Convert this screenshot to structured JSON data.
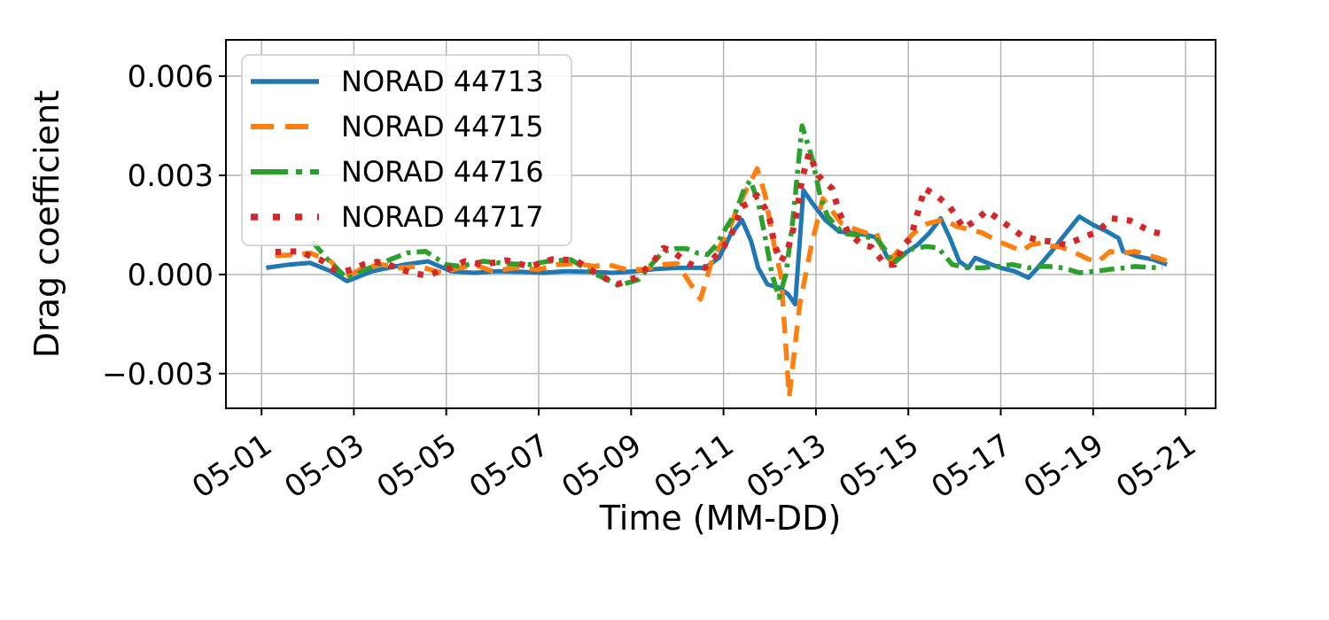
{
  "figure": {
    "background": "#ffffff",
    "grid_color": "#b0b0b0",
    "spine_color": "#000000",
    "legend_bg": "rgba(255,255,255,0.85)",
    "legend_border": "#cccccc"
  },
  "chart_data": {
    "type": "line",
    "title": "",
    "xlabel": "Time (MM-DD)",
    "ylabel": "Drag coefficient",
    "x_tick_days": [
      1,
      3,
      5,
      7,
      9,
      11,
      13,
      15,
      17,
      19,
      21
    ],
    "x_tick_labels": [
      "05-01",
      "05-03",
      "05-05",
      "05-07",
      "05-09",
      "05-11",
      "05-13",
      "05-15",
      "05-17",
      "05-19",
      "05-21"
    ],
    "y_ticks": [
      -0.003,
      0.0,
      0.003,
      0.006
    ],
    "y_tick_labels": [
      "−0.003",
      "0.000",
      "0.003",
      "0.006"
    ],
    "xlim_days": [
      0.23,
      21.65
    ],
    "ylim": [
      -0.00405,
      0.0071
    ],
    "grid": true,
    "legend_position": "upper left",
    "series": [
      {
        "name": "NORAD 44713",
        "color": "#1f77b4",
        "linestyle": "solid",
        "points": [
          [
            1.1,
            0.0002
          ],
          [
            1.6,
            0.0003
          ],
          [
            2.05,
            0.00035
          ],
          [
            2.5,
            0.0001
          ],
          [
            2.85,
            -0.0002
          ],
          [
            3.4,
            0.0001
          ],
          [
            4.1,
            0.0003
          ],
          [
            4.6,
            0.0004
          ],
          [
            5.1,
            0.0001
          ],
          [
            5.6,
            5e-05
          ],
          [
            6.1,
            0.0001
          ],
          [
            6.6,
            8e-05
          ],
          [
            7.1,
            5e-05
          ],
          [
            7.6,
            0.0001
          ],
          [
            8.1,
            8e-05
          ],
          [
            8.6,
            5e-05
          ],
          [
            9.1,
            0.0001
          ],
          [
            9.5,
            0.00016
          ],
          [
            10.0,
            0.0002
          ],
          [
            10.6,
            0.0002
          ],
          [
            10.9,
            0.0005
          ],
          [
            11.15,
            0.0012
          ],
          [
            11.4,
            0.00165
          ],
          [
            11.6,
            0.001
          ],
          [
            11.75,
            0.0002
          ],
          [
            11.95,
            -0.0003
          ],
          [
            12.2,
            -0.0004
          ],
          [
            12.4,
            -0.0006
          ],
          [
            12.55,
            -0.0009
          ],
          [
            12.73,
            0.00255
          ],
          [
            12.9,
            0.0022
          ],
          [
            13.2,
            0.00165
          ],
          [
            13.5,
            0.0013
          ],
          [
            13.8,
            0.00125
          ],
          [
            14.1,
            0.0012
          ],
          [
            14.35,
            0.0011
          ],
          [
            14.55,
            0.0005
          ],
          [
            14.7,
            0.00043
          ],
          [
            15.2,
            0.0009
          ],
          [
            15.45,
            0.00125
          ],
          [
            15.7,
            0.0017
          ],
          [
            15.9,
            0.0011
          ],
          [
            16.1,
            0.0004
          ],
          [
            16.3,
            0.0002
          ],
          [
            16.45,
            0.0005
          ],
          [
            16.8,
            0.0003
          ],
          [
            17.0,
            0.0002
          ],
          [
            17.3,
            0.0001
          ],
          [
            17.6,
            -0.0001
          ],
          [
            17.8,
            0.0002
          ],
          [
            18.1,
            0.0007
          ],
          [
            18.4,
            0.00123
          ],
          [
            18.7,
            0.00175
          ],
          [
            19.0,
            0.0015
          ],
          [
            19.3,
            0.0013
          ],
          [
            19.55,
            0.0011
          ],
          [
            19.65,
            0.0007
          ],
          [
            19.95,
            0.00055
          ],
          [
            20.3,
            0.00045
          ],
          [
            20.6,
            0.0003
          ]
        ]
      },
      {
        "name": "NORAD 44715",
        "color": "#ff7f0e",
        "linestyle": "dashed",
        "points": [
          [
            1.3,
            0.00057
          ],
          [
            1.8,
            0.0006
          ],
          [
            2.05,
            0.00065
          ],
          [
            2.5,
            0.0004
          ],
          [
            2.8,
            -0.0001
          ],
          [
            3.2,
            0.0002
          ],
          [
            3.6,
            0.0003
          ],
          [
            4.0,
            0.0002
          ],
          [
            4.4,
            0.00025
          ],
          [
            4.9,
            5e-05
          ],
          [
            5.3,
            0.0002
          ],
          [
            5.6,
            0.0003
          ],
          [
            6.0,
            0.0001
          ],
          [
            6.5,
            0.0002
          ],
          [
            7.0,
            0.00015
          ],
          [
            7.4,
            0.0003
          ],
          [
            7.8,
            0.00033
          ],
          [
            8.2,
            0.00025
          ],
          [
            8.5,
            0.0003
          ],
          [
            8.9,
            0.00015
          ],
          [
            9.3,
            0.00015
          ],
          [
            9.65,
            0.0003
          ],
          [
            10.0,
            0.00033
          ],
          [
            10.2,
            -0.0001
          ],
          [
            10.5,
            -0.00075
          ],
          [
            10.75,
            0.00043
          ],
          [
            11.1,
            0.0013
          ],
          [
            11.3,
            0.002
          ],
          [
            11.5,
            0.00257
          ],
          [
            11.73,
            0.0032
          ],
          [
            11.9,
            0.0024
          ],
          [
            12.1,
            0.00086
          ],
          [
            12.25,
            -0.0001
          ],
          [
            12.42,
            -0.0037
          ],
          [
            12.65,
            -0.0009
          ],
          [
            12.9,
            0.00087
          ],
          [
            13.15,
            0.0023
          ],
          [
            13.55,
            0.00155
          ],
          [
            13.8,
            0.0014
          ],
          [
            14.1,
            0.00125
          ],
          [
            14.3,
            0.0013
          ],
          [
            14.45,
            0.00072
          ],
          [
            14.6,
            0.00043
          ],
          [
            14.85,
            0.00083
          ],
          [
            15.1,
            0.00123
          ],
          [
            15.4,
            0.00153
          ],
          [
            15.77,
            0.00167
          ],
          [
            16.05,
            0.00145
          ],
          [
            16.3,
            0.00137
          ],
          [
            16.6,
            0.00126
          ],
          [
            16.95,
            0.001
          ],
          [
            17.25,
            0.00083
          ],
          [
            17.45,
            0.0007
          ],
          [
            17.65,
            0.0009
          ],
          [
            17.9,
            0.00096
          ],
          [
            18.1,
            0.00086
          ],
          [
            18.3,
            0.00083
          ],
          [
            18.55,
            0.0007
          ],
          [
            18.9,
            0.00046
          ],
          [
            19.1,
            0.00038
          ],
          [
            19.37,
            0.0007
          ],
          [
            19.64,
            0.00064
          ],
          [
            19.9,
            0.0007
          ],
          [
            20.14,
            0.0006
          ],
          [
            20.4,
            0.0005
          ],
          [
            20.6,
            0.0004
          ]
        ]
      },
      {
        "name": "NORAD 44716",
        "color": "#2ca02c",
        "linestyle": "dashdot",
        "points": [
          [
            2.1,
            0.001
          ],
          [
            2.4,
            0.0005
          ],
          [
            2.85,
            -0.00012
          ],
          [
            3.4,
            0.00024
          ],
          [
            4.15,
            0.00065
          ],
          [
            4.55,
            0.0007
          ],
          [
            5.0,
            0.0003
          ],
          [
            5.3,
            0.00025
          ],
          [
            5.8,
            0.0004
          ],
          [
            6.3,
            0.00033
          ],
          [
            6.8,
            0.0003
          ],
          [
            7.2,
            0.0004
          ],
          [
            7.7,
            0.00045
          ],
          [
            8.1,
            0.0001
          ],
          [
            8.4,
            -0.0001
          ],
          [
            8.75,
            -0.00033
          ],
          [
            9.15,
            -0.00016
          ],
          [
            9.4,
            0.00024
          ],
          [
            9.7,
            0.0007
          ],
          [
            9.95,
            0.00078
          ],
          [
            10.2,
            0.00078
          ],
          [
            10.45,
            0.00064
          ],
          [
            10.65,
            0.0006
          ],
          [
            10.85,
            0.0009
          ],
          [
            11.05,
            0.0014
          ],
          [
            11.25,
            0.00185
          ],
          [
            11.45,
            0.0026
          ],
          [
            11.58,
            0.00285
          ],
          [
            11.75,
            0.0022
          ],
          [
            11.9,
            0.00113
          ],
          [
            12.05,
            0.0
          ],
          [
            12.2,
            -0.0007
          ],
          [
            12.35,
            0.0
          ],
          [
            12.5,
            0.00166
          ],
          [
            12.7,
            0.0045
          ],
          [
            12.92,
            0.0035
          ],
          [
            13.1,
            0.00233
          ],
          [
            13.25,
            0.00177
          ],
          [
            13.45,
            0.00145
          ],
          [
            13.6,
            0.00124
          ],
          [
            13.85,
            0.0012
          ],
          [
            14.1,
            0.00113
          ],
          [
            14.3,
            0.0011
          ],
          [
            14.5,
            0.00075
          ],
          [
            14.67,
            0.00033
          ],
          [
            14.9,
            0.0006
          ],
          [
            15.1,
            0.00078
          ],
          [
            15.4,
            0.00085
          ],
          [
            15.65,
            0.0008
          ],
          [
            15.95,
            0.0003
          ],
          [
            16.3,
            0.0002
          ],
          [
            16.6,
            0.0002
          ],
          [
            16.9,
            0.00024
          ],
          [
            17.25,
            0.0003
          ],
          [
            17.6,
            0.0002
          ],
          [
            17.8,
            0.00024
          ],
          [
            18.05,
            0.00024
          ],
          [
            18.35,
            0.0002
          ],
          [
            18.7,
            5e-05
          ],
          [
            19.07,
            0.0001
          ],
          [
            19.4,
            0.00016
          ],
          [
            19.7,
            0.0002
          ],
          [
            19.9,
            0.00024
          ],
          [
            20.15,
            0.00022
          ],
          [
            20.5,
            0.0002
          ]
        ]
      },
      {
        "name": "NORAD 44717",
        "color": "#d62728",
        "linestyle": "dotted",
        "points": [
          [
            1.3,
            0.00068
          ],
          [
            1.8,
            0.0007
          ],
          [
            2.3,
            0.00043
          ],
          [
            2.55,
            0.00016
          ],
          [
            2.8,
            0.0001
          ],
          [
            3.0,
            0.00016
          ],
          [
            3.2,
            0.0003
          ],
          [
            3.5,
            0.00038
          ],
          [
            3.75,
            0.0003
          ],
          [
            4.0,
            0.00016
          ],
          [
            4.3,
            3e-05
          ],
          [
            4.6,
            -3e-05
          ],
          [
            4.85,
            0.0001
          ],
          [
            5.1,
            0.0002
          ],
          [
            5.4,
            0.0004
          ],
          [
            5.8,
            0.0003
          ],
          [
            6.3,
            0.00043
          ],
          [
            6.8,
            0.00024
          ],
          [
            7.3,
            0.00046
          ],
          [
            7.8,
            0.00043
          ],
          [
            8.25,
            3e-05
          ],
          [
            8.5,
            -0.00016
          ],
          [
            8.7,
            -0.0003
          ],
          [
            9.1,
            -0.0001
          ],
          [
            9.45,
            0.00033
          ],
          [
            9.7,
            0.0008
          ],
          [
            9.9,
            0.0007
          ],
          [
            10.15,
            0.00043
          ],
          [
            10.3,
            0.0003
          ],
          [
            10.6,
            0.0002
          ],
          [
            11.0,
            0.00083
          ],
          [
            11.2,
            0.0013
          ],
          [
            11.4,
            0.00206
          ],
          [
            11.55,
            0.00216
          ],
          [
            11.72,
            0.0024
          ],
          [
            11.9,
            0.002
          ],
          [
            12.0,
            0.00166
          ],
          [
            12.1,
            0.0009
          ],
          [
            12.25,
            0.0004
          ],
          [
            12.4,
            0.0008
          ],
          [
            12.55,
            0.0016
          ],
          [
            12.7,
            0.0029
          ],
          [
            12.85,
            0.00367
          ],
          [
            13.05,
            0.003
          ],
          [
            13.15,
            0.00285
          ],
          [
            13.35,
            0.0026
          ],
          [
            13.5,
            0.0019
          ],
          [
            13.7,
            0.00126
          ],
          [
            14.0,
            0.0009
          ],
          [
            14.2,
            0.00083
          ],
          [
            14.5,
            0.0003
          ],
          [
            14.7,
            0.0003
          ],
          [
            14.9,
            0.0009
          ],
          [
            15.05,
            0.0011
          ],
          [
            15.35,
            0.0026
          ],
          [
            15.6,
            0.0024
          ],
          [
            15.9,
            0.00204
          ],
          [
            16.2,
            0.0014
          ],
          [
            16.45,
            0.00163
          ],
          [
            16.7,
            0.00193
          ],
          [
            17.1,
            0.00153
          ],
          [
            17.45,
            0.00118
          ],
          [
            17.8,
            0.00104
          ],
          [
            18.06,
            0.001
          ],
          [
            18.4,
            0.0009
          ],
          [
            18.75,
            0.0011
          ],
          [
            19.1,
            0.0013
          ],
          [
            19.4,
            0.0017
          ],
          [
            19.8,
            0.00163
          ],
          [
            20.25,
            0.0013
          ],
          [
            20.6,
            0.0012
          ]
        ]
      }
    ]
  }
}
